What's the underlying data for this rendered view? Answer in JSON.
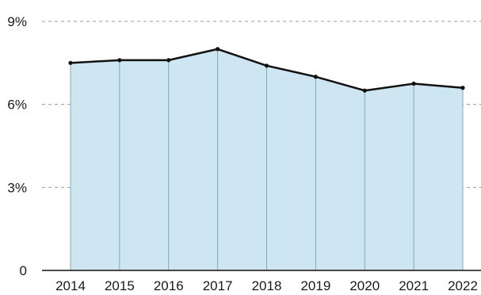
{
  "chart_data": {
    "type": "area",
    "title": "",
    "xlabel": "",
    "ylabel": "",
    "categories": [
      "2014",
      "2015",
      "2016",
      "2017",
      "2018",
      "2019",
      "2020",
      "2021",
      "2022"
    ],
    "values": [
      7.5,
      7.6,
      7.6,
      8.0,
      7.4,
      7.0,
      6.5,
      6.75,
      6.6
    ],
    "ylim": [
      0,
      9
    ],
    "y_ticks": [
      {
        "value": 0,
        "label": "0"
      },
      {
        "value": 3,
        "label": "3%"
      },
      {
        "value": 6,
        "label": "6%"
      },
      {
        "value": 9,
        "label": "9%"
      }
    ],
    "grid": "dashed horizontal",
    "colors": {
      "fill": "#cde6f1",
      "line": "#111111",
      "grid": "#9a9a9a",
      "divider": "#8aa6b3"
    }
  }
}
